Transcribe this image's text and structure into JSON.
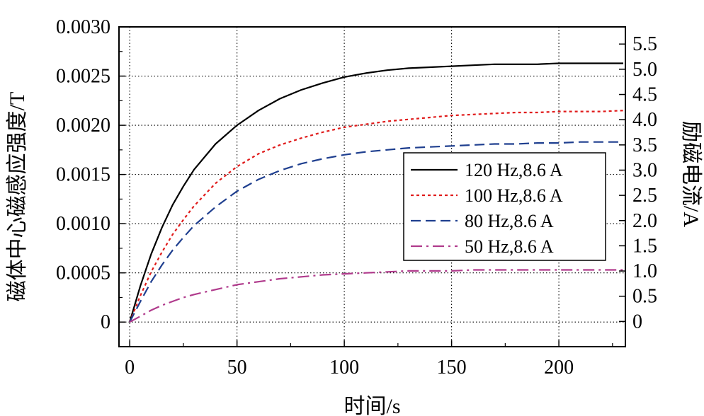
{
  "chart_data": {
    "type": "line",
    "title": "",
    "xlabel": "时间/s",
    "ylabel": "磁体中心磁感应强度/T",
    "y2label": "励磁电流/A",
    "xlim": [
      -5,
      231
    ],
    "ylim": [
      -0.00025,
      0.003
    ],
    "y2lim": [
      -0.5,
      5.84
    ],
    "xticks": [
      0,
      50,
      100,
      150,
      200
    ],
    "xtick_labels": [
      "0",
      "50",
      "100",
      "150",
      "200"
    ],
    "yticks": [
      0,
      0.0005,
      0.001,
      0.0015,
      0.002,
      0.0025,
      0.003
    ],
    "ytick_labels": [
      "0",
      "0.0005",
      "0.0010",
      "0.0015",
      "0.0020",
      "0.0025",
      "0.0030"
    ],
    "y2ticks": [
      0,
      0.5,
      1,
      1.5,
      2,
      2.5,
      3,
      3.5,
      4,
      4.5,
      5,
      5.5
    ],
    "y2tick_labels": [
      "0",
      "0.5",
      "1.0",
      "1.5",
      "2.0",
      "2.5",
      "3.0",
      "3.5",
      "4.0",
      "4.5",
      "5.0",
      "5.5"
    ],
    "grid": true,
    "legend_position": "center-right",
    "x": [
      0,
      5,
      10,
      15,
      20,
      25,
      30,
      40,
      50,
      60,
      70,
      80,
      90,
      100,
      110,
      120,
      130,
      140,
      150,
      160,
      170,
      180,
      190,
      200,
      210,
      220,
      230
    ],
    "series": [
      {
        "name": "120 Hz,8.6 A",
        "color": "#000000",
        "dash": "solid",
        "values": [
          0,
          0.00037,
          0.00069,
          0.00096,
          0.00119,
          0.00138,
          0.00155,
          0.00181,
          0.002,
          0.00215,
          0.00227,
          0.00236,
          0.00243,
          0.00249,
          0.00253,
          0.00256,
          0.00258,
          0.00259,
          0.0026,
          0.00261,
          0.00262,
          0.00262,
          0.00262,
          0.00263,
          0.00263,
          0.00263,
          0.00263
        ]
      },
      {
        "name": "100 Hz,8.6 A",
        "color": "#e01b1b",
        "dash": "dotted",
        "values": [
          0,
          0.00027,
          0.00051,
          0.00071,
          0.00089,
          0.00104,
          0.00118,
          0.00141,
          0.00158,
          0.00171,
          0.0018,
          0.00187,
          0.00193,
          0.00198,
          0.00201,
          0.00204,
          0.00206,
          0.00208,
          0.0021,
          0.00211,
          0.00212,
          0.00213,
          0.00213,
          0.00214,
          0.00214,
          0.00214,
          0.00215
        ]
      },
      {
        "name": "80 Hz,8.6 A",
        "color": "#1f3f8f",
        "dash": "dashed",
        "values": [
          0,
          0.00021,
          0.00041,
          0.00058,
          0.00073,
          0.00086,
          0.00098,
          0.00117,
          0.00133,
          0.00145,
          0.00154,
          0.00161,
          0.00166,
          0.0017,
          0.00173,
          0.00175,
          0.00177,
          0.00178,
          0.00179,
          0.0018,
          0.00181,
          0.00181,
          0.00182,
          0.00182,
          0.00183,
          0.00183,
          0.00183
        ]
      },
      {
        "name": "50 Hz,8.6 A",
        "color": "#b03a8c",
        "dash": "dashdot",
        "values": [
          0,
          6e-05,
          0.00012,
          0.00017,
          0.00021,
          0.00025,
          0.00028,
          0.00033,
          0.00038,
          0.00041,
          0.00044,
          0.00046,
          0.00048,
          0.00049,
          0.0005,
          0.00051,
          0.00052,
          0.00052,
          0.00052,
          0.00053,
          0.00053,
          0.00053,
          0.00053,
          0.00053,
          0.00053,
          0.00053,
          0.00053
        ]
      }
    ]
  }
}
